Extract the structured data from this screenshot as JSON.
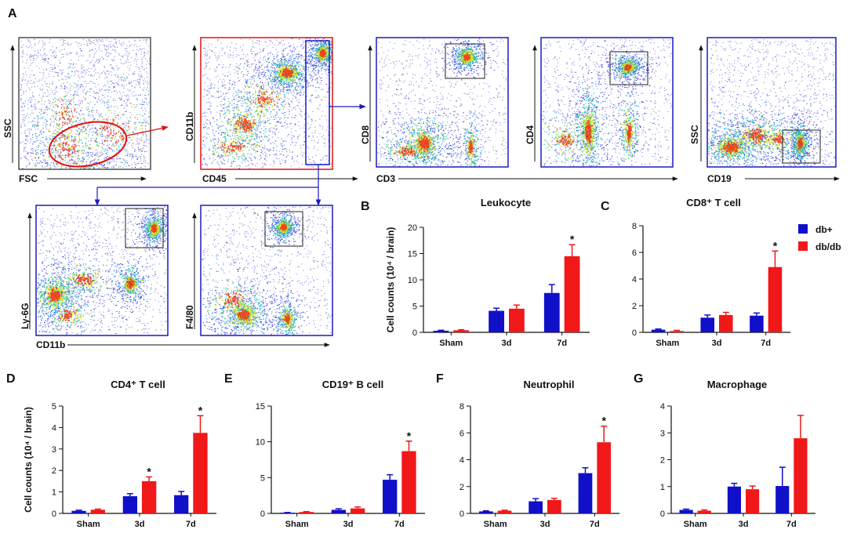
{
  "panel_letters": [
    "A",
    "B",
    "C",
    "D",
    "E",
    "F",
    "G"
  ],
  "colors": {
    "db_plus": "#1010c8",
    "db_db": "#f01818",
    "gate_red": "#e01010",
    "gate_blue": "#1a1ac0"
  },
  "flow": {
    "plots": [
      {
        "ylabel": "SSC",
        "xlabel": "FSC"
      },
      {
        "ylabel": "CD11b",
        "xlabel": "CD45"
      },
      {
        "ylabel": "CD8",
        "xlabel": "CD3"
      },
      {
        "ylabel": "CD4"
      },
      {
        "ylabel": "SSC",
        "xlabel": "CD19"
      },
      {
        "ylabel": "Ly-6G",
        "xlabel": "CD11b"
      },
      {
        "ylabel": "F4/80"
      }
    ]
  },
  "legend": {
    "items": [
      "db+",
      "db/db"
    ]
  },
  "shared_ylabel": "Cell counts (10⁴ / brain)",
  "chart_data": [
    {
      "id": "B",
      "type": "bar",
      "title": "Leukocyte",
      "ylabel": "Cell counts (10⁴ / brain)",
      "categories": [
        "Sham",
        "3d",
        "7d"
      ],
      "ylim": [
        0,
        20
      ],
      "yticks": [
        0,
        5,
        10,
        15,
        20
      ],
      "series": [
        {
          "name": "db+",
          "values": [
            0.3,
            4.1,
            7.5
          ],
          "errors": [
            0.1,
            0.5,
            1.6
          ]
        },
        {
          "name": "db/db",
          "values": [
            0.4,
            4.5,
            14.5
          ],
          "errors": [
            0.1,
            0.7,
            2.2
          ]
        }
      ],
      "significance": [
        {
          "category": "7d",
          "series": "db/db",
          "label": "*"
        }
      ]
    },
    {
      "id": "C",
      "type": "bar",
      "title": "CD8⁺ T cell",
      "categories": [
        "Sham",
        "3d",
        "7d"
      ],
      "ylim": [
        0,
        8
      ],
      "yticks": [
        0,
        2,
        4,
        6,
        8
      ],
      "series": [
        {
          "name": "db+",
          "values": [
            0.2,
            1.1,
            1.25
          ],
          "errors": [
            0.05,
            0.2,
            0.2
          ]
        },
        {
          "name": "db/db",
          "values": [
            0.1,
            1.3,
            4.9
          ],
          "errors": [
            0.05,
            0.2,
            1.2
          ]
        }
      ],
      "significance": [
        {
          "category": "7d",
          "series": "db/db",
          "label": "*"
        }
      ]
    },
    {
      "id": "D",
      "type": "bar",
      "title": "CD4⁺ T cell",
      "ylabel": "Cell counts (10⁴ / brain)",
      "categories": [
        "Sham",
        "3d",
        "7d"
      ],
      "ylim": [
        0,
        5
      ],
      "yticks": [
        0,
        1,
        2,
        3,
        4,
        5
      ],
      "series": [
        {
          "name": "db+",
          "values": [
            0.12,
            0.8,
            0.85
          ],
          "errors": [
            0.03,
            0.12,
            0.17
          ]
        },
        {
          "name": "db/db",
          "values": [
            0.17,
            1.5,
            3.75
          ],
          "errors": [
            0.03,
            0.2,
            0.8
          ]
        }
      ],
      "significance": [
        {
          "category": "3d",
          "series": "db/db",
          "label": "*"
        },
        {
          "category": "7d",
          "series": "db/db",
          "label": "*"
        }
      ]
    },
    {
      "id": "E",
      "type": "bar",
      "title": "CD19⁺ B cell",
      "categories": [
        "Sham",
        "3d",
        "7d"
      ],
      "ylim": [
        0,
        15
      ],
      "yticks": [
        0,
        5,
        10,
        15
      ],
      "series": [
        {
          "name": "db+",
          "values": [
            0.1,
            0.5,
            4.7
          ],
          "errors": [
            0.03,
            0.15,
            0.7
          ]
        },
        {
          "name": "db/db",
          "values": [
            0.2,
            0.7,
            8.7
          ],
          "errors": [
            0.05,
            0.2,
            1.4
          ]
        }
      ],
      "significance": [
        {
          "category": "7d",
          "series": "db/db",
          "label": "*"
        }
      ]
    },
    {
      "id": "F",
      "type": "bar",
      "title": "Neutrophil",
      "categories": [
        "Sham",
        "3d",
        "7d"
      ],
      "ylim": [
        0,
        8
      ],
      "yticks": [
        0,
        2,
        4,
        6,
        8
      ],
      "series": [
        {
          "name": "db+",
          "values": [
            0.15,
            0.9,
            3.0
          ],
          "errors": [
            0.04,
            0.2,
            0.4
          ]
        },
        {
          "name": "db/db",
          "values": [
            0.2,
            1.0,
            5.3
          ],
          "errors": [
            0.04,
            0.12,
            1.2
          ]
        }
      ],
      "significance": [
        {
          "category": "7d",
          "series": "db/db",
          "label": "*"
        }
      ]
    },
    {
      "id": "G",
      "type": "bar",
      "title": "Macrophage",
      "categories": [
        "Sham",
        "3d",
        "7d"
      ],
      "ylim": [
        0,
        4
      ],
      "yticks": [
        0,
        1,
        2,
        3,
        4
      ],
      "series": [
        {
          "name": "db+",
          "values": [
            0.13,
            1.0,
            1.02
          ],
          "errors": [
            0.03,
            0.12,
            0.7
          ]
        },
        {
          "name": "db/db",
          "values": [
            0.1,
            0.9,
            2.8
          ],
          "errors": [
            0.03,
            0.12,
            0.85
          ]
        }
      ]
    }
  ]
}
